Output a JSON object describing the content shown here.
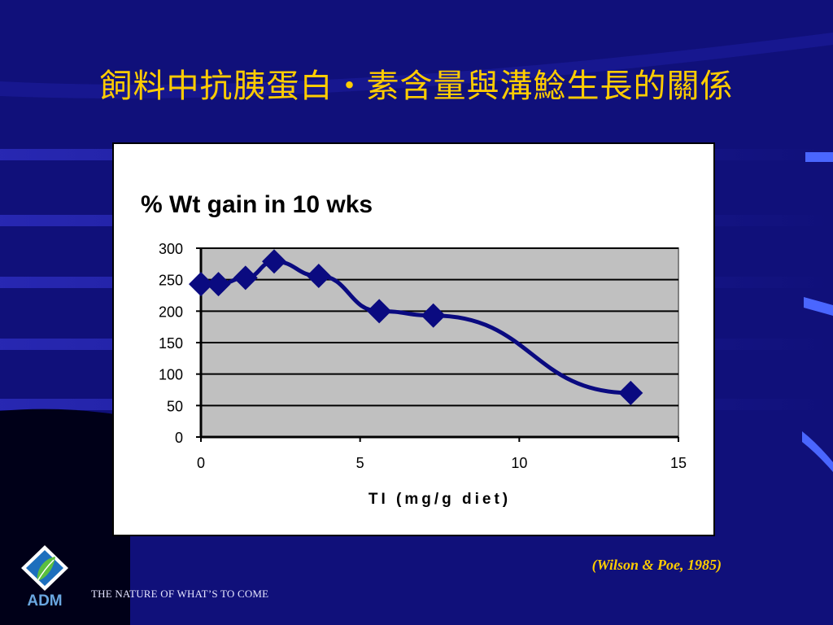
{
  "slide": {
    "title": "飼料中抗胰蛋白・素含量與溝鯰生長的關係",
    "citation": "(Wilson & Poe, 1985)",
    "logo_text": "ADM",
    "tagline": "THE NATURE OF WHAT’S TO COME"
  },
  "colors": {
    "background": "#10107a",
    "title": "#ffcc00",
    "series": "#0a0a80",
    "plot_area": "#c0c0c0"
  },
  "chart_data": {
    "type": "line",
    "title": "% Wt gain in 10 wks",
    "xlabel": "TI (mg/g diet)",
    "ylabel": "",
    "xlim": [
      0,
      15
    ],
    "ylim": [
      0,
      300
    ],
    "xticks": [
      0,
      5,
      10,
      15
    ],
    "yticks": [
      0,
      50,
      100,
      150,
      200,
      250,
      300
    ],
    "grid": true,
    "legend": "none",
    "series": [
      {
        "x": [
          0,
          0.55,
          1.4,
          2.3,
          3.7,
          5.6,
          7.3,
          13.5
        ],
        "y": [
          243,
          243,
          253,
          279,
          256,
          200,
          193,
          70
        ]
      }
    ]
  }
}
